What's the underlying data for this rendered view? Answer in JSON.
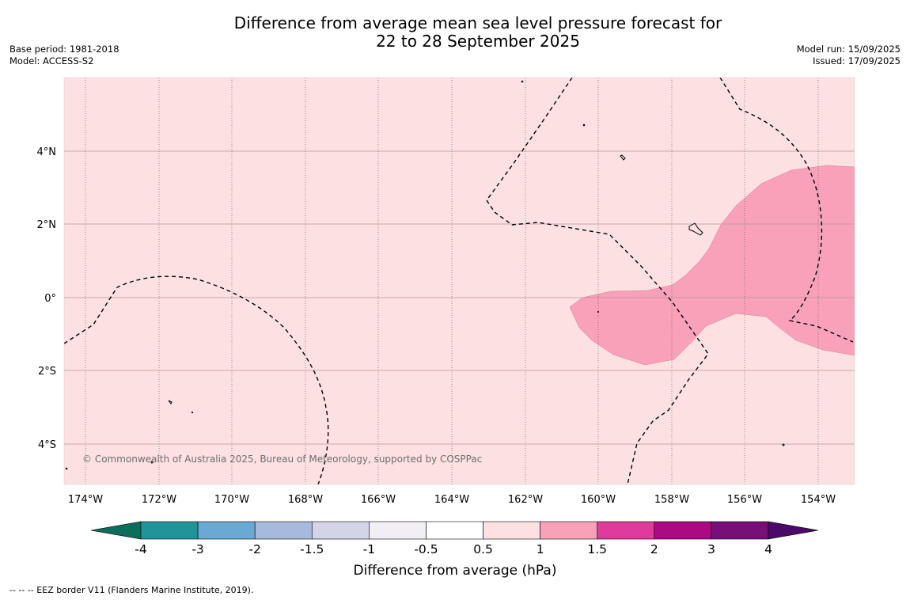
{
  "title_line1": "Difference from average mean sea level pressure forecast for",
  "title_line2": "22 to 28 September 2025",
  "base_period": "Base period: 1981-2018",
  "model": "Model: ACCESS-S2",
  "model_run": "Model run: 15/09/2025",
  "issued": "Issued: 17/09/2025",
  "copyright": "© Commonwealth of Australia 2025, Bureau of Meteorology, supported by COSPPac",
  "footer_note": "-- -- -- EEZ border V11 (Flanders Marine Institute, 2019).",
  "lat_labels": [
    "4°N",
    "2°N",
    "0°",
    "2°S",
    "4°S"
  ],
  "lon_labels": [
    "174°W",
    "172°W",
    "170°W",
    "168°W",
    "166°W",
    "164°W",
    "162°W",
    "160°W",
    "158°W",
    "156°W",
    "154°W"
  ],
  "colorbar": {
    "title": "Difference from average (hPa)",
    "labels": [
      "-4",
      "-3",
      "-2",
      "-1.5",
      "-1",
      "-0.5",
      "0.5",
      "1",
      "1.5",
      "2",
      "3",
      "4"
    ],
    "colors": [
      "#0a6e5a",
      "#1f9499",
      "#6aaad2",
      "#a7b9dc",
      "#d4d4e9",
      "#f1eff3",
      "#ffffff",
      "#fde0e0",
      "#f8a1b9",
      "#df3b9c",
      "#ac0a82",
      "#780e78",
      "#4a0a68"
    ]
  },
  "map": {
    "background_color": "#fde0e0",
    "anomaly_color": "#f8a1b9"
  }
}
